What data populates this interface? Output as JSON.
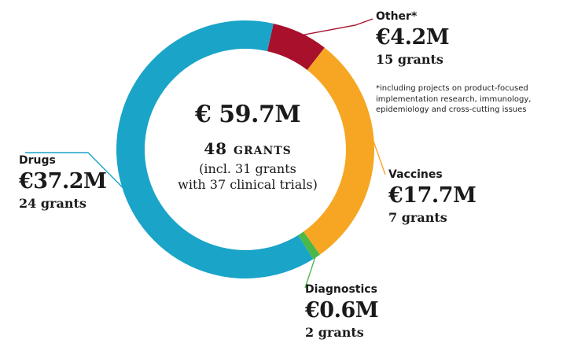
{
  "chart_data": {
    "type": "pie",
    "donut": true,
    "title": "",
    "slices": [
      {
        "label": "Other*",
        "value": 4.2,
        "amount": "€4.2M",
        "grants": "15 grants",
        "color": "#a8102c"
      },
      {
        "label": "Vaccines",
        "value": 17.7,
        "amount": "€17.7M",
        "grants": "7 grants",
        "color": "#f6a623"
      },
      {
        "label": "Diagnostics",
        "value": 0.6,
        "amount": "€0.6M",
        "grants": "2 grants",
        "color": "#4cb848"
      },
      {
        "label": "Drugs",
        "value": 37.2,
        "amount": "€37.2M",
        "grants": "24 grants",
        "color": "#1aa4c8"
      }
    ],
    "center": {
      "total": "€ 59.7M",
      "grants": "48 grants",
      "note_line1": "(incl. 31 grants",
      "note_line2": "with 37 clinical trials)"
    },
    "footnote": "*including projects on product-focused implementation research, immunology, epidemiology and cross-cutting issues"
  }
}
